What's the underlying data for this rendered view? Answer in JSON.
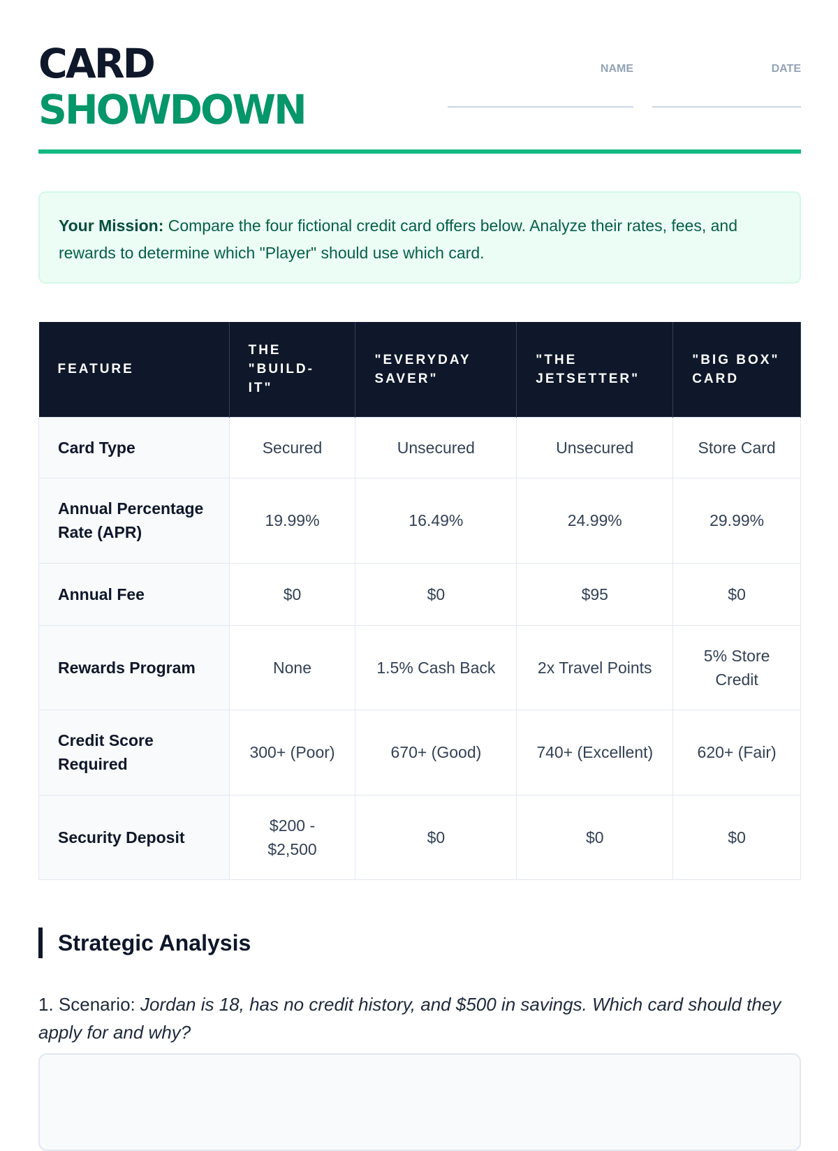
{
  "header": {
    "title_line1": "CARD",
    "title_line2": "SHOWDOWN",
    "name_label": "NAME",
    "date_label": "DATE"
  },
  "mission": {
    "label": "Your Mission:",
    "text": " Compare the four fictional credit card offers below. Analyze their rates, fees, and rewards to determine which \"Player\" should use which card."
  },
  "table": {
    "headers": [
      "FEATURE",
      "THE \"BUILD-IT\"",
      "\"EVERYDAY SAVER\"",
      "\"THE JETSETTER\"",
      "\"BIG BOX\" CARD"
    ],
    "rows": [
      [
        "Card Type",
        "Secured",
        "Unsecured",
        "Unsecured",
        "Store Card"
      ],
      [
        "Annual Percentage Rate (APR)",
        "19.99%",
        "16.49%",
        "24.99%",
        "29.99%"
      ],
      [
        "Annual Fee",
        "$0",
        "$0",
        "$95",
        "$0"
      ],
      [
        "Rewards Program",
        "None",
        "1.5% Cash Back",
        "2x Travel Points",
        "5% Store Credit"
      ],
      [
        "Credit Score Required",
        "300+ (Poor)",
        "670+ (Good)",
        "740+ (Excellent)",
        "620+ (Fair)"
      ],
      [
        "Security Deposit",
        "$200 - $2,500",
        "$0",
        "$0",
        "$0"
      ]
    ]
  },
  "analysis": {
    "heading": "Strategic Analysis",
    "q1_prefix": "1. Scenario: ",
    "q1_text": "Jordan is 18, has no credit history, and $500 in savings. Which card should they apply for and why?"
  }
}
